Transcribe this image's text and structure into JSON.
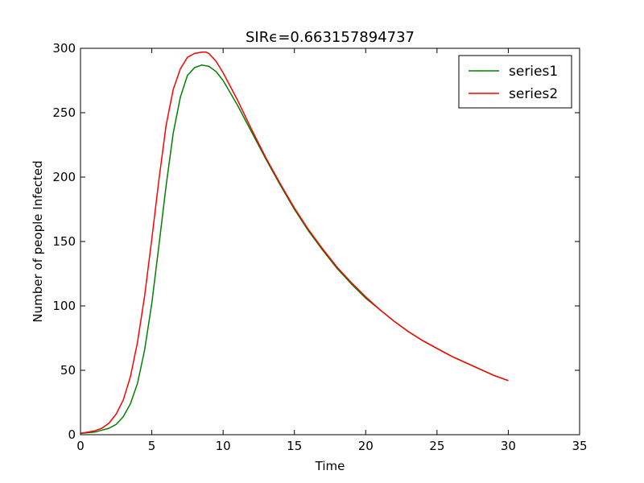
{
  "chart_data": {
    "type": "line",
    "title": "SIRϵ=0.663157894737",
    "xlabel": "Time",
    "ylabel": "Number of people Infected",
    "xlim": [
      0,
      35
    ],
    "ylim": [
      0,
      300
    ],
    "xticks": [
      0,
      5,
      10,
      15,
      20,
      25,
      30,
      35
    ],
    "yticks": [
      0,
      50,
      100,
      150,
      200,
      250,
      300
    ],
    "grid": false,
    "legend_position": "top-right",
    "series": [
      {
        "name": "series1",
        "color": "#008000",
        "x": [
          0,
          1,
          2,
          2.5,
          3,
          3.5,
          4,
          4.5,
          5,
          5.5,
          6,
          6.5,
          7,
          7.5,
          8,
          8.5,
          9,
          9.5,
          10,
          11,
          12,
          13,
          14,
          15,
          16,
          17,
          18,
          19,
          20,
          21,
          22,
          23,
          24,
          25,
          26,
          27,
          28,
          29,
          30
        ],
        "values": [
          1,
          2,
          5,
          8,
          14,
          24,
          40,
          66,
          102,
          147,
          193,
          234,
          262,
          279,
          285,
          287,
          286,
          282,
          275,
          256,
          235,
          214,
          194,
          175,
          158,
          143,
          129,
          117,
          106,
          97,
          88,
          80,
          73,
          67,
          61,
          56,
          51,
          46,
          42
        ]
      },
      {
        "name": "series2",
        "color": "#ff0000",
        "x": [
          0,
          1,
          1.5,
          2,
          2.5,
          3,
          3.5,
          4,
          4.5,
          5,
          5.5,
          6,
          6.5,
          7,
          7.5,
          8,
          8.5,
          8.8,
          9,
          9.5,
          10,
          11,
          12,
          13,
          14,
          15,
          16,
          17,
          18,
          19,
          20,
          21,
          22,
          23,
          24,
          25,
          26,
          27,
          28,
          29,
          30
        ],
        "values": [
          1,
          3,
          5,
          9,
          16,
          27,
          45,
          72,
          108,
          152,
          198,
          240,
          268,
          284,
          293,
          296,
          297,
          297,
          296,
          290,
          281,
          260,
          237,
          215,
          195,
          176,
          159,
          144,
          130,
          118,
          107,
          97,
          88,
          80,
          73,
          67,
          61,
          56,
          51,
          46,
          42
        ]
      }
    ]
  }
}
